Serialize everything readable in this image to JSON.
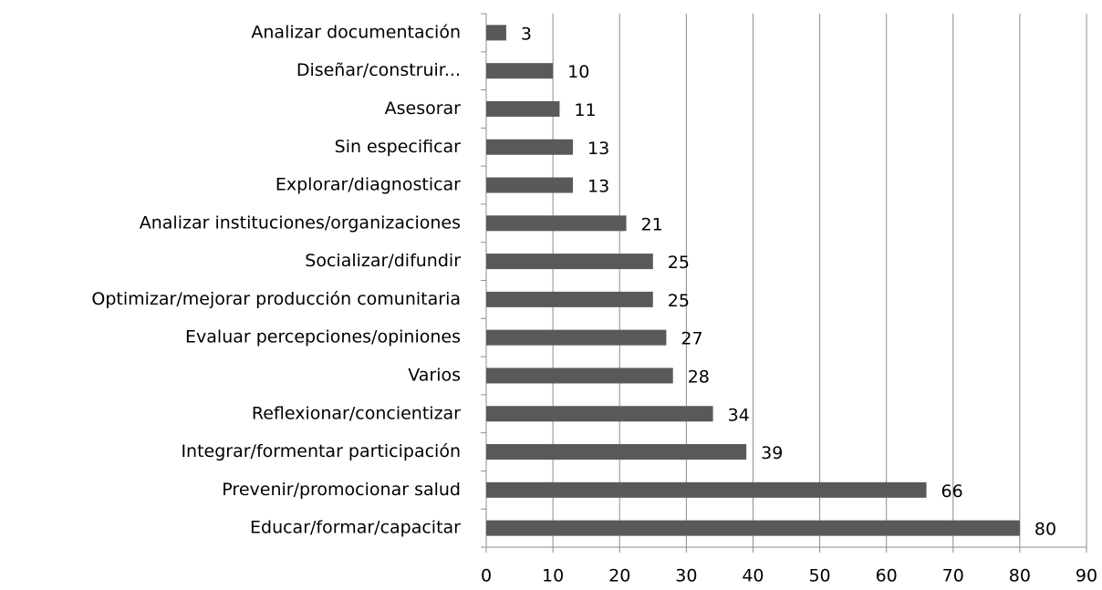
{
  "chart_data": {
    "type": "barh",
    "categories": [
      "Analizar documentación",
      "Diseñar/construir...",
      "Asesorar",
      "Sin especificar",
      "Explorar/diagnosticar",
      "Analizar instituciones/organizaciones",
      "Socializar/difundir",
      "Optimizar/mejorar producción comunitaria",
      "Evaluar percepciones/opiniones",
      "Varios",
      "Reflexionar/concientizar",
      "Integrar/formentar participación",
      "Prevenir/promocionar salud",
      "Educar/formar/capacitar"
    ],
    "values": [
      3,
      10,
      11,
      13,
      13,
      21,
      25,
      25,
      27,
      28,
      34,
      39,
      66,
      80
    ],
    "color": "#595959",
    "xlim": [
      0,
      90
    ],
    "xticks": [
      0,
      10,
      20,
      30,
      40,
      50,
      60,
      70,
      80,
      90
    ],
    "grid": true
  }
}
